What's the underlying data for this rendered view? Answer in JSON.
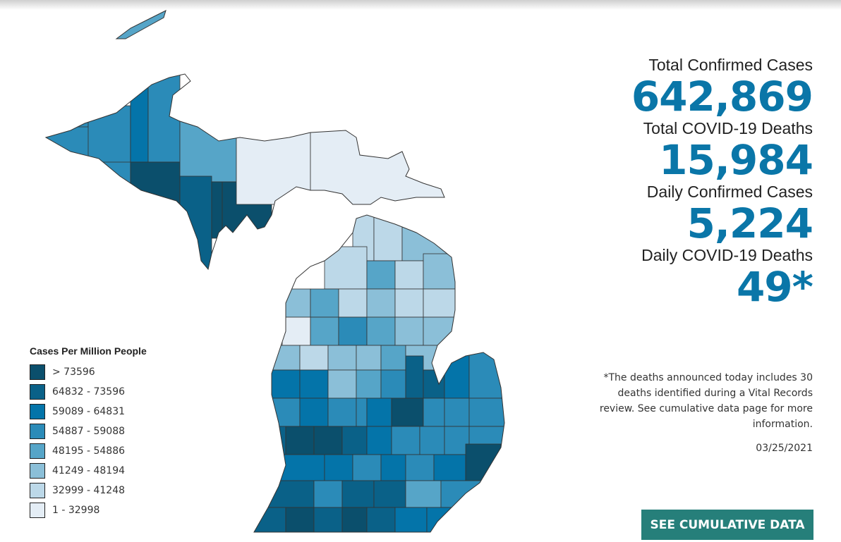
{
  "legend": {
    "title": "Cases Per Million People",
    "items": [
      {
        "label": "> 73596",
        "color": "#0b4f6c"
      },
      {
        "label": "64832 - 73596",
        "color": "#0a6188"
      },
      {
        "label": "59089 - 64831",
        "color": "#0474a9"
      },
      {
        "label": "54887 - 59088",
        "color": "#2b8bb8"
      },
      {
        "label": "48195 - 54886",
        "color": "#56a5c8"
      },
      {
        "label": "41249 - 48194",
        "color": "#8bbfd8"
      },
      {
        "label": "32999 - 41248",
        "color": "#bcd8e8"
      },
      {
        "label": "1 - 32998",
        "color": "#e4edf5"
      }
    ]
  },
  "stats": [
    {
      "label": "Total Confirmed Cases",
      "value": "642,869"
    },
    {
      "label": "Total COVID-19 Deaths",
      "value": "15,984"
    },
    {
      "label": "Daily Confirmed Cases",
      "value": "5,224"
    },
    {
      "label": "Daily COVID-19 Deaths",
      "value": "49*"
    }
  ],
  "note": "*The deaths announced today includes 30 deaths identified during a Vital Records review. See cumulative data page for more information.",
  "date": "03/25/2021",
  "button_label": "SEE CUMULATIVE DATA"
}
